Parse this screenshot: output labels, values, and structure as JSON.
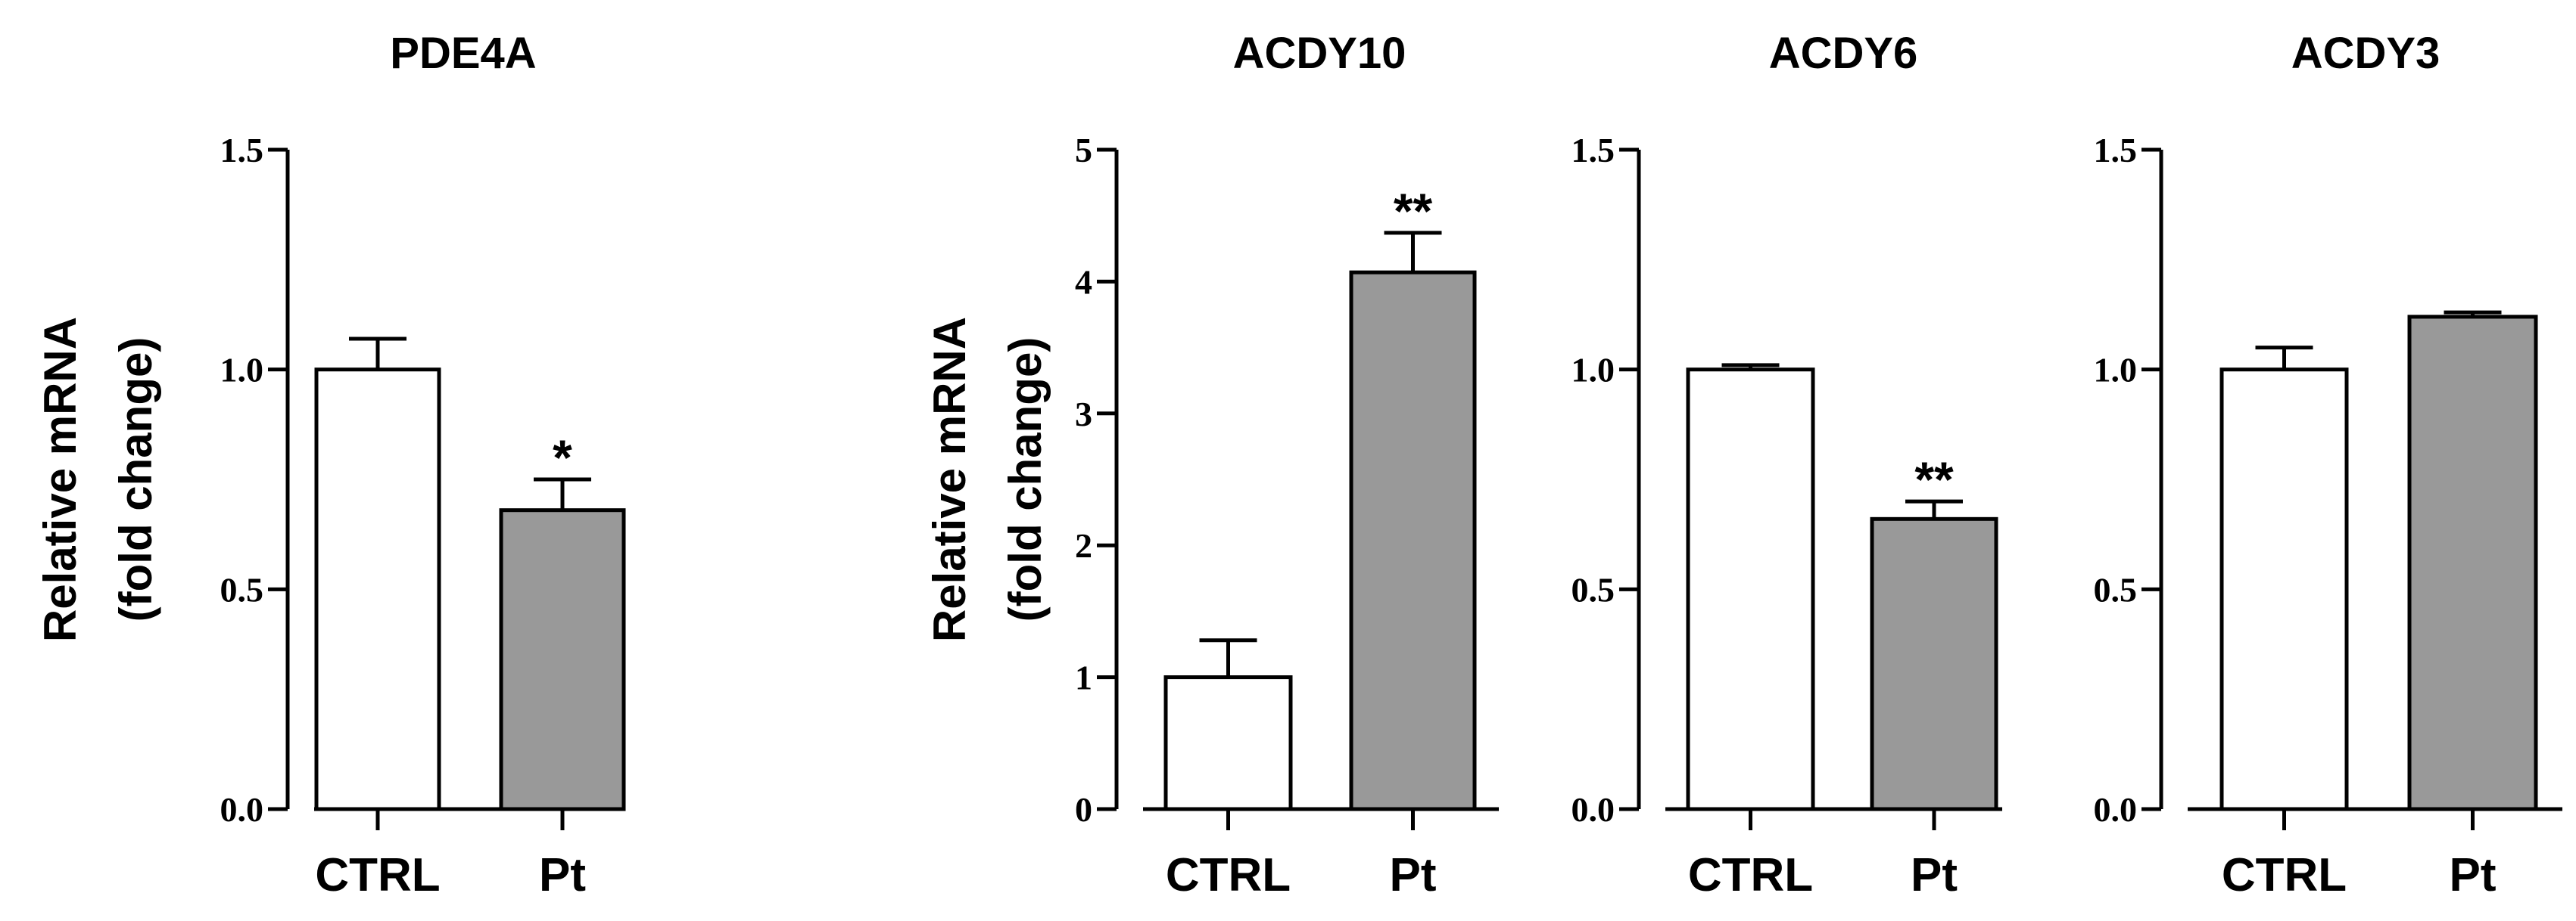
{
  "chart_data": [
    {
      "type": "bar",
      "title": "PDE4A",
      "ylabel": [
        "Relative mRNA",
        "(fold change)"
      ],
      "categories": [
        "CTRL",
        "Pt"
      ],
      "values": [
        1.0,
        0.68
      ],
      "errors": [
        0.07,
        0.07
      ],
      "significance": [
        "",
        "*"
      ],
      "ylim": [
        0,
        1.5
      ],
      "yticks": [
        "0.0",
        "0.5",
        "1.0",
        "1.5"
      ],
      "bar_colors": [
        "#ffffff",
        "#999999"
      ]
    },
    {
      "type": "bar",
      "title": "ACDY10",
      "ylabel": [
        "Relative mRNA",
        "(fold change)"
      ],
      "categories": [
        "CTRL",
        "Pt"
      ],
      "values": [
        1.0,
        4.07
      ],
      "errors": [
        0.28,
        0.3
      ],
      "significance": [
        "",
        "**"
      ],
      "ylim": [
        0,
        5
      ],
      "yticks": [
        "0",
        "1",
        "2",
        "3",
        "4",
        "5"
      ],
      "bar_colors": [
        "#ffffff",
        "#999999"
      ]
    },
    {
      "type": "bar",
      "title": "ACDY6",
      "ylabel": [],
      "categories": [
        "CTRL",
        "Pt"
      ],
      "values": [
        1.0,
        0.66
      ],
      "errors": [
        0.01,
        0.04
      ],
      "significance": [
        "",
        "**"
      ],
      "ylim": [
        0,
        1.5
      ],
      "yticks": [
        "0.0",
        "0.5",
        "1.0",
        "1.5"
      ],
      "bar_colors": [
        "#ffffff",
        "#999999"
      ]
    },
    {
      "type": "bar",
      "title": "ACDY3",
      "ylabel": [],
      "categories": [
        "CTRL",
        "Pt"
      ],
      "values": [
        1.0,
        1.12
      ],
      "errors": [
        0.05,
        0.01
      ],
      "significance": [
        "",
        ""
      ],
      "ylim": [
        0,
        1.5
      ],
      "yticks": [
        "0.0",
        "0.5",
        "1.0",
        "1.5"
      ],
      "bar_colors": [
        "#ffffff",
        "#999999"
      ]
    }
  ]
}
